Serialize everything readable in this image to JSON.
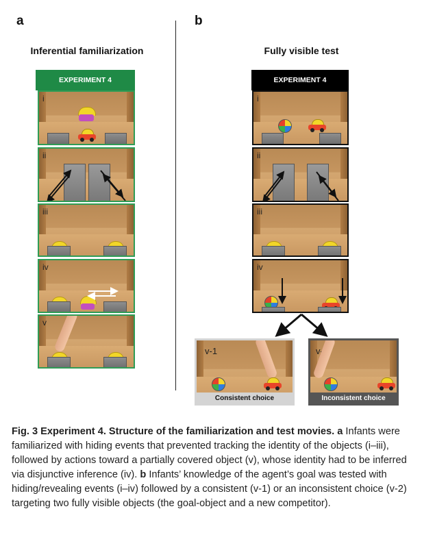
{
  "panels": {
    "a": {
      "letter": "a",
      "title": "Inferential familiarization",
      "header": "EXPERIMENT 4",
      "frames": [
        "i",
        "ii",
        "iii",
        "iv",
        "v"
      ]
    },
    "b": {
      "letter": "b",
      "title": "Fully visible test",
      "header": "EXPERIMENT 4",
      "frames": [
        "i",
        "ii",
        "iii",
        "iv"
      ],
      "outcomes": [
        {
          "label": "v-1",
          "bar": "Consistent choice"
        },
        {
          "label": "v-2",
          "bar": "Inconsistent choice"
        }
      ]
    }
  },
  "colors": {
    "green_header": "#1f8a46",
    "black_header": "#000000",
    "consistent_bar": "#d4d4d4",
    "inconsistent_bar": "#555555"
  },
  "caption": {
    "head": "Fig. 3 Experiment 4. Structure of the familiarization and test movies.",
    "a_marker": "a",
    "a_text": "Infants were familiarized with hiding events that prevented tracking the identity of the objects (i–iii), followed by actions toward a partially covered object (v), whose identity had to be inferred via disjunctive inference (iv).",
    "b_marker": "b",
    "b_text": "Infants’ knowledge of the agent’s goal was tested with hiding/revealing events (i–iv) followed by a consistent (v-1) or an inconsistent choice (v-2) targeting two fully visible objects (the goal-object and a new competitor)."
  }
}
